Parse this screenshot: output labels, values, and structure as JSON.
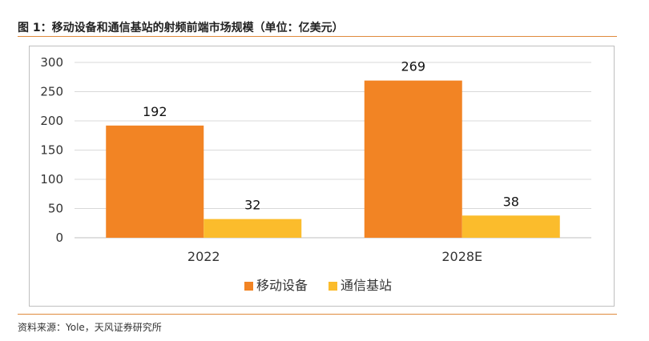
{
  "figure": {
    "title": "图 1：移动设备和通信基站的射频前端市场规模（单位：亿美元）",
    "source": "资料来源：Yole，天风证券研究所"
  },
  "colors": {
    "series_1": "#f28424",
    "series_2": "#fbbc2c",
    "gridline": "#d9d9d9",
    "accent_rule": "#e08a3c"
  },
  "chart_data": {
    "type": "bar",
    "title": "图 1：移动设备和通信基站的射频前端市场规模（单位：亿美元）",
    "xlabel": "",
    "ylabel": "",
    "ylim": [
      0,
      300
    ],
    "yticks": [
      0,
      50,
      100,
      150,
      200,
      250,
      300
    ],
    "categories": [
      "2022",
      "2028E"
    ],
    "series": [
      {
        "name": "移动设备",
        "values": [
          192,
          269
        ]
      },
      {
        "name": "通信基站",
        "values": [
          32,
          38
        ]
      }
    ],
    "grid": true,
    "legend": "bottom-center"
  }
}
